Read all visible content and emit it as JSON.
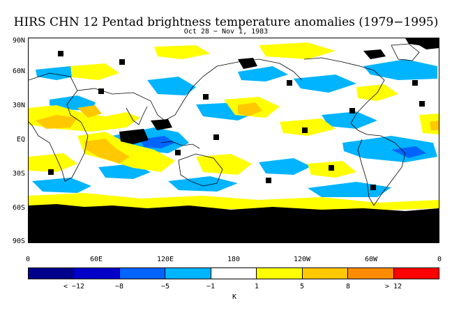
{
  "title": "HIRS CHN 12 Pentad brightness temperature anomalies (1979−1995)",
  "subtitle": "Oct 28 − Nov 1, 1983",
  "lat_labels": [
    "90N",
    "60N",
    "30N",
    "EQ",
    "30S",
    "60S",
    "90S"
  ],
  "lon_labels": [
    "0",
    "60E",
    "120E",
    "180",
    "120W",
    "60W",
    "0"
  ],
  "colorbar": {
    "colors": [
      "#00008c",
      "#0000c8",
      "#0064ff",
      "#00b4ff",
      "#ffffff",
      "#ffff00",
      "#ffc800",
      "#ff8c00",
      "#ff0000"
    ],
    "labels": [
      "< −12",
      "−8",
      "−5",
      "−1",
      "1",
      "5",
      "8",
      "> 12"
    ],
    "unit": "K"
  },
  "map_colors": {
    "missing": "#000000",
    "ocean": "#ffffff",
    "coast": "#000000",
    "weak_negative": "#00b4ff",
    "moderate_negative": "#0064ff",
    "weak_positive": "#ffff00",
    "moderate_positive": "#ffc800"
  }
}
